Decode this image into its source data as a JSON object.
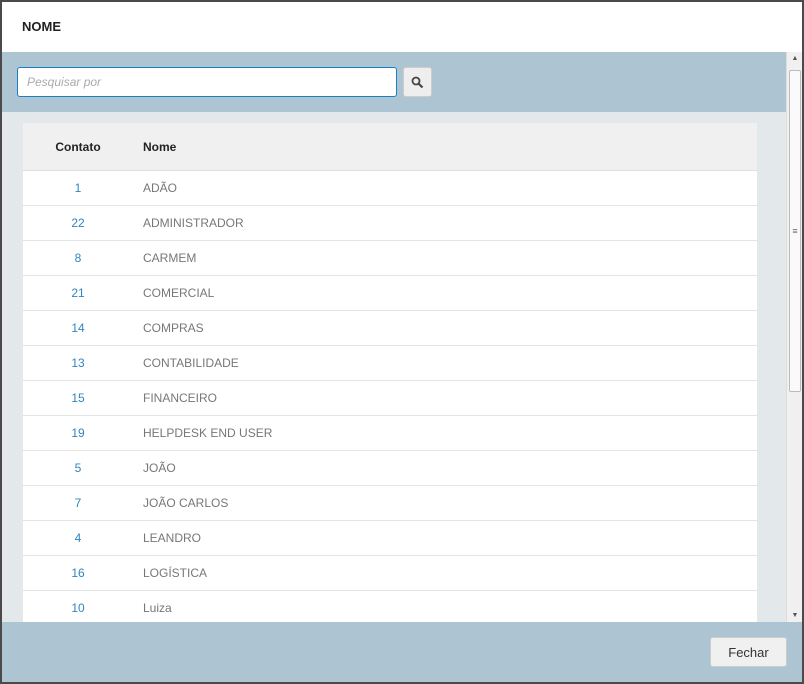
{
  "header": {
    "title": "NOME"
  },
  "search": {
    "placeholder": "Pesquisar por",
    "icon": "search-icon"
  },
  "table": {
    "columns": [
      "Contato",
      "Nome"
    ],
    "rows": [
      {
        "id": "1",
        "name": "ADÃO"
      },
      {
        "id": "22",
        "name": "ADMINISTRADOR"
      },
      {
        "id": "8",
        "name": "CARMEM"
      },
      {
        "id": "21",
        "name": "COMERCIAL"
      },
      {
        "id": "14",
        "name": "COMPRAS"
      },
      {
        "id": "13",
        "name": "CONTABILIDADE"
      },
      {
        "id": "15",
        "name": "FINANCEIRO"
      },
      {
        "id": "19",
        "name": "HELPDESK END USER"
      },
      {
        "id": "5",
        "name": "JOÃO"
      },
      {
        "id": "7",
        "name": "JOÃO CARLOS"
      },
      {
        "id": "4",
        "name": "LEANDRO"
      },
      {
        "id": "16",
        "name": "LOGÍSTICA"
      },
      {
        "id": "10",
        "name": "Luiza"
      }
    ]
  },
  "footer": {
    "close_label": "Fechar"
  },
  "colors": {
    "accent": "#2f86be",
    "bar": "#adc5d3"
  }
}
